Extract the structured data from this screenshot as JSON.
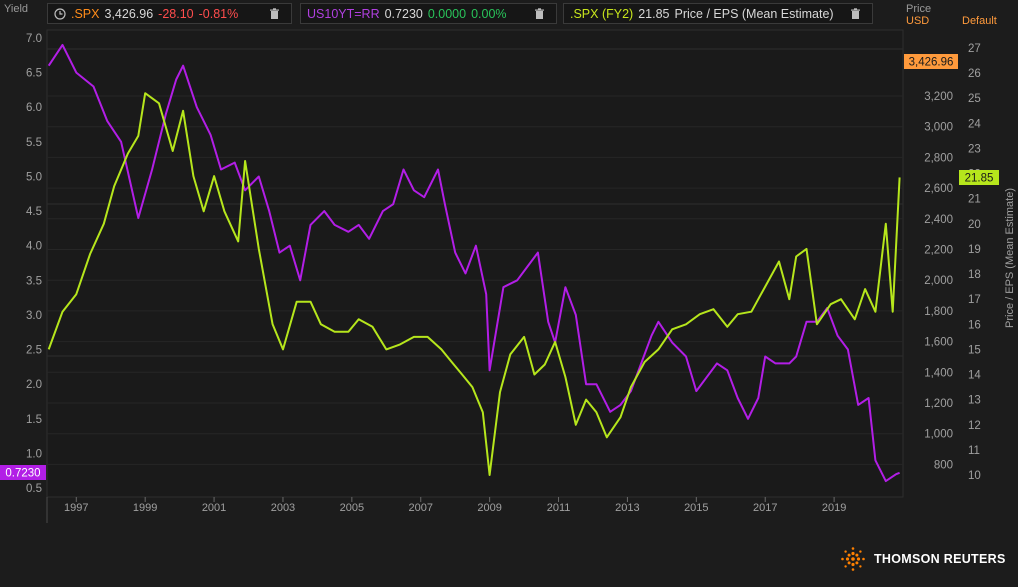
{
  "legend": [
    {
      "symbol": ".SPX",
      "value": "3,426.96",
      "change": "-28.10",
      "pct": "-0.81%",
      "symbol_color": "#ff8c1a",
      "change_color": "#ff4d4d"
    },
    {
      "symbol": "US10YT=RR",
      "value": "0.7230",
      "change": "0.0000",
      "pct": "0.00%",
      "symbol_color": "#b040e0",
      "change_color": "#29c35a"
    },
    {
      "symbol": ".SPX (FY2)",
      "value": "21.85",
      "desc": "Price / EPS (Mean Estimate)",
      "symbol_color": "#c8e61c"
    }
  ],
  "axes": {
    "left_title": "Yield",
    "price_title": "Price",
    "price_unit": "USD",
    "default_title": "Default",
    "right_label": "Price / EPS (Mean Estimate)"
  },
  "badges": {
    "yield": "0.7230",
    "price": "3,426.96",
    "pe": "21.85"
  },
  "brand": "THOMSON REUTERS",
  "colors": {
    "yield": "#b21ee6",
    "pe": "#b6e61c",
    "price_badge": "#ff9a3c",
    "background": "#1c1c1c",
    "grid": "#2a2a2a"
  },
  "chart_data": {
    "type": "line",
    "x_ticks": [
      "1997",
      "1999",
      "2001",
      "2003",
      "2005",
      "2007",
      "2009",
      "2011",
      "2013",
      "2015",
      "2017",
      "2019"
    ],
    "yield_axis": {
      "title": "Yield",
      "range": [
        0.5,
        7.0
      ],
      "ticks": [
        "7.0",
        "6.5",
        "6.0",
        "5.5",
        "5.0",
        "4.5",
        "4.0",
        "3.5",
        "3.0",
        "2.5",
        "2.0",
        "1.5",
        "1.0",
        "0.5"
      ]
    },
    "price_axis": {
      "title": "Price",
      "unit": "USD",
      "ticks": [
        "3,200",
        "3,000",
        "2,800",
        "2,600",
        "2,400",
        "2,200",
        "2,000",
        "1,800",
        "1,600",
        "1,400",
        "1,200",
        "1,000",
        "800"
      ]
    },
    "pe_axis": {
      "title": "Price / EPS (Mean Estimate)",
      "range": [
        9.5,
        27
      ],
      "ticks": [
        "27",
        "26",
        "25",
        "24",
        "23",
        "22",
        "21",
        "20",
        "19",
        "18",
        "17",
        "16",
        "15",
        "14",
        "13",
        "12",
        "11",
        "10"
      ]
    },
    "series": [
      {
        "name": "US10YT=RR",
        "color": "#b21ee6",
        "axis": "yield",
        "x": [
          1996.2,
          1996.6,
          1997.0,
          1997.5,
          1997.9,
          1998.3,
          1998.8,
          1999.2,
          1999.6,
          1999.9,
          2000.1,
          2000.5,
          2000.9,
          2001.2,
          2001.6,
          2001.9,
          2002.3,
          2002.6,
          2002.9,
          2003.2,
          2003.5,
          2003.8,
          2004.2,
          2004.5,
          2004.9,
          2005.2,
          2005.5,
          2005.9,
          2006.2,
          2006.5,
          2006.8,
          2007.1,
          2007.5,
          2007.7,
          2008.0,
          2008.3,
          2008.6,
          2008.9,
          2009.0,
          2009.4,
          2009.8,
          2010.1,
          2010.4,
          2010.7,
          2010.9,
          2011.2,
          2011.5,
          2011.8,
          2012.1,
          2012.5,
          2012.8,
          2013.1,
          2013.4,
          2013.7,
          2013.9,
          2014.3,
          2014.7,
          2015.0,
          2015.3,
          2015.6,
          2015.9,
          2016.2,
          2016.5,
          2016.8,
          2017.0,
          2017.3,
          2017.7,
          2017.9,
          2018.2,
          2018.5,
          2018.8,
          2019.1,
          2019.4,
          2019.7,
          2020.0,
          2020.2,
          2020.5,
          2020.8,
          2020.9
        ],
        "y": [
          6.6,
          6.9,
          6.5,
          6.3,
          5.8,
          5.5,
          4.4,
          5.1,
          5.9,
          6.4,
          6.6,
          6.0,
          5.6,
          5.1,
          5.2,
          4.8,
          5.0,
          4.5,
          3.9,
          4.0,
          3.5,
          4.3,
          4.5,
          4.3,
          4.2,
          4.3,
          4.1,
          4.5,
          4.6,
          5.1,
          4.8,
          4.7,
          5.1,
          4.6,
          3.9,
          3.6,
          4.0,
          3.3,
          2.2,
          3.4,
          3.5,
          3.7,
          3.9,
          2.9,
          2.6,
          3.4,
          3.0,
          2.0,
          2.0,
          1.6,
          1.7,
          1.9,
          2.3,
          2.7,
          2.9,
          2.6,
          2.4,
          1.9,
          2.1,
          2.3,
          2.2,
          1.8,
          1.5,
          1.8,
          2.4,
          2.3,
          2.3,
          2.4,
          2.9,
          2.9,
          3.1,
          2.7,
          2.5,
          1.7,
          1.8,
          0.9,
          0.6,
          0.7,
          0.72
        ]
      },
      {
        "name": ".SPX (FY2)",
        "color": "#b6e61c",
        "axis": "pe",
        "x": [
          1996.2,
          1996.6,
          1997.0,
          1997.4,
          1997.8,
          1998.1,
          1998.5,
          1998.8,
          1999.0,
          1999.4,
          1999.8,
          2000.1,
          2000.4,
          2000.7,
          2001.0,
          2001.3,
          2001.7,
          2001.9,
          2002.3,
          2002.7,
          2003.0,
          2003.4,
          2003.8,
          2004.1,
          2004.5,
          2004.9,
          2005.2,
          2005.6,
          2006.0,
          2006.4,
          2006.8,
          2007.2,
          2007.6,
          2007.9,
          2008.2,
          2008.5,
          2008.8,
          2009.0,
          2009.3,
          2009.6,
          2010.0,
          2010.3,
          2010.6,
          2010.9,
          2011.2,
          2011.5,
          2011.8,
          2012.1,
          2012.4,
          2012.8,
          2013.1,
          2013.5,
          2013.9,
          2014.3,
          2014.7,
          2015.1,
          2015.5,
          2015.9,
          2016.2,
          2016.6,
          2017.0,
          2017.4,
          2017.7,
          2017.9,
          2018.2,
          2018.5,
          2018.9,
          2019.2,
          2019.6,
          2019.9,
          2020.2,
          2020.5,
          2020.7,
          2020.9
        ],
        "y": [
          15.0,
          16.5,
          17.2,
          18.8,
          20.0,
          21.5,
          22.8,
          23.5,
          25.2,
          24.8,
          22.9,
          24.5,
          21.9,
          20.5,
          21.9,
          20.5,
          19.3,
          22.5,
          19.0,
          16.0,
          15.0,
          16.9,
          16.9,
          16.0,
          15.7,
          15.7,
          16.2,
          15.9,
          15.0,
          15.2,
          15.5,
          15.5,
          15.0,
          14.5,
          14.0,
          13.5,
          12.5,
          10.0,
          13.3,
          14.8,
          15.5,
          14.0,
          14.4,
          15.3,
          13.9,
          12.0,
          13.0,
          12.5,
          11.5,
          12.3,
          13.5,
          14.5,
          15.0,
          15.8,
          16.0,
          16.4,
          16.6,
          15.9,
          16.4,
          16.5,
          17.5,
          18.5,
          17.0,
          18.7,
          19.0,
          16.0,
          16.8,
          17.0,
          16.2,
          17.4,
          16.5,
          20.0,
          16.5,
          21.85
        ]
      }
    ]
  }
}
